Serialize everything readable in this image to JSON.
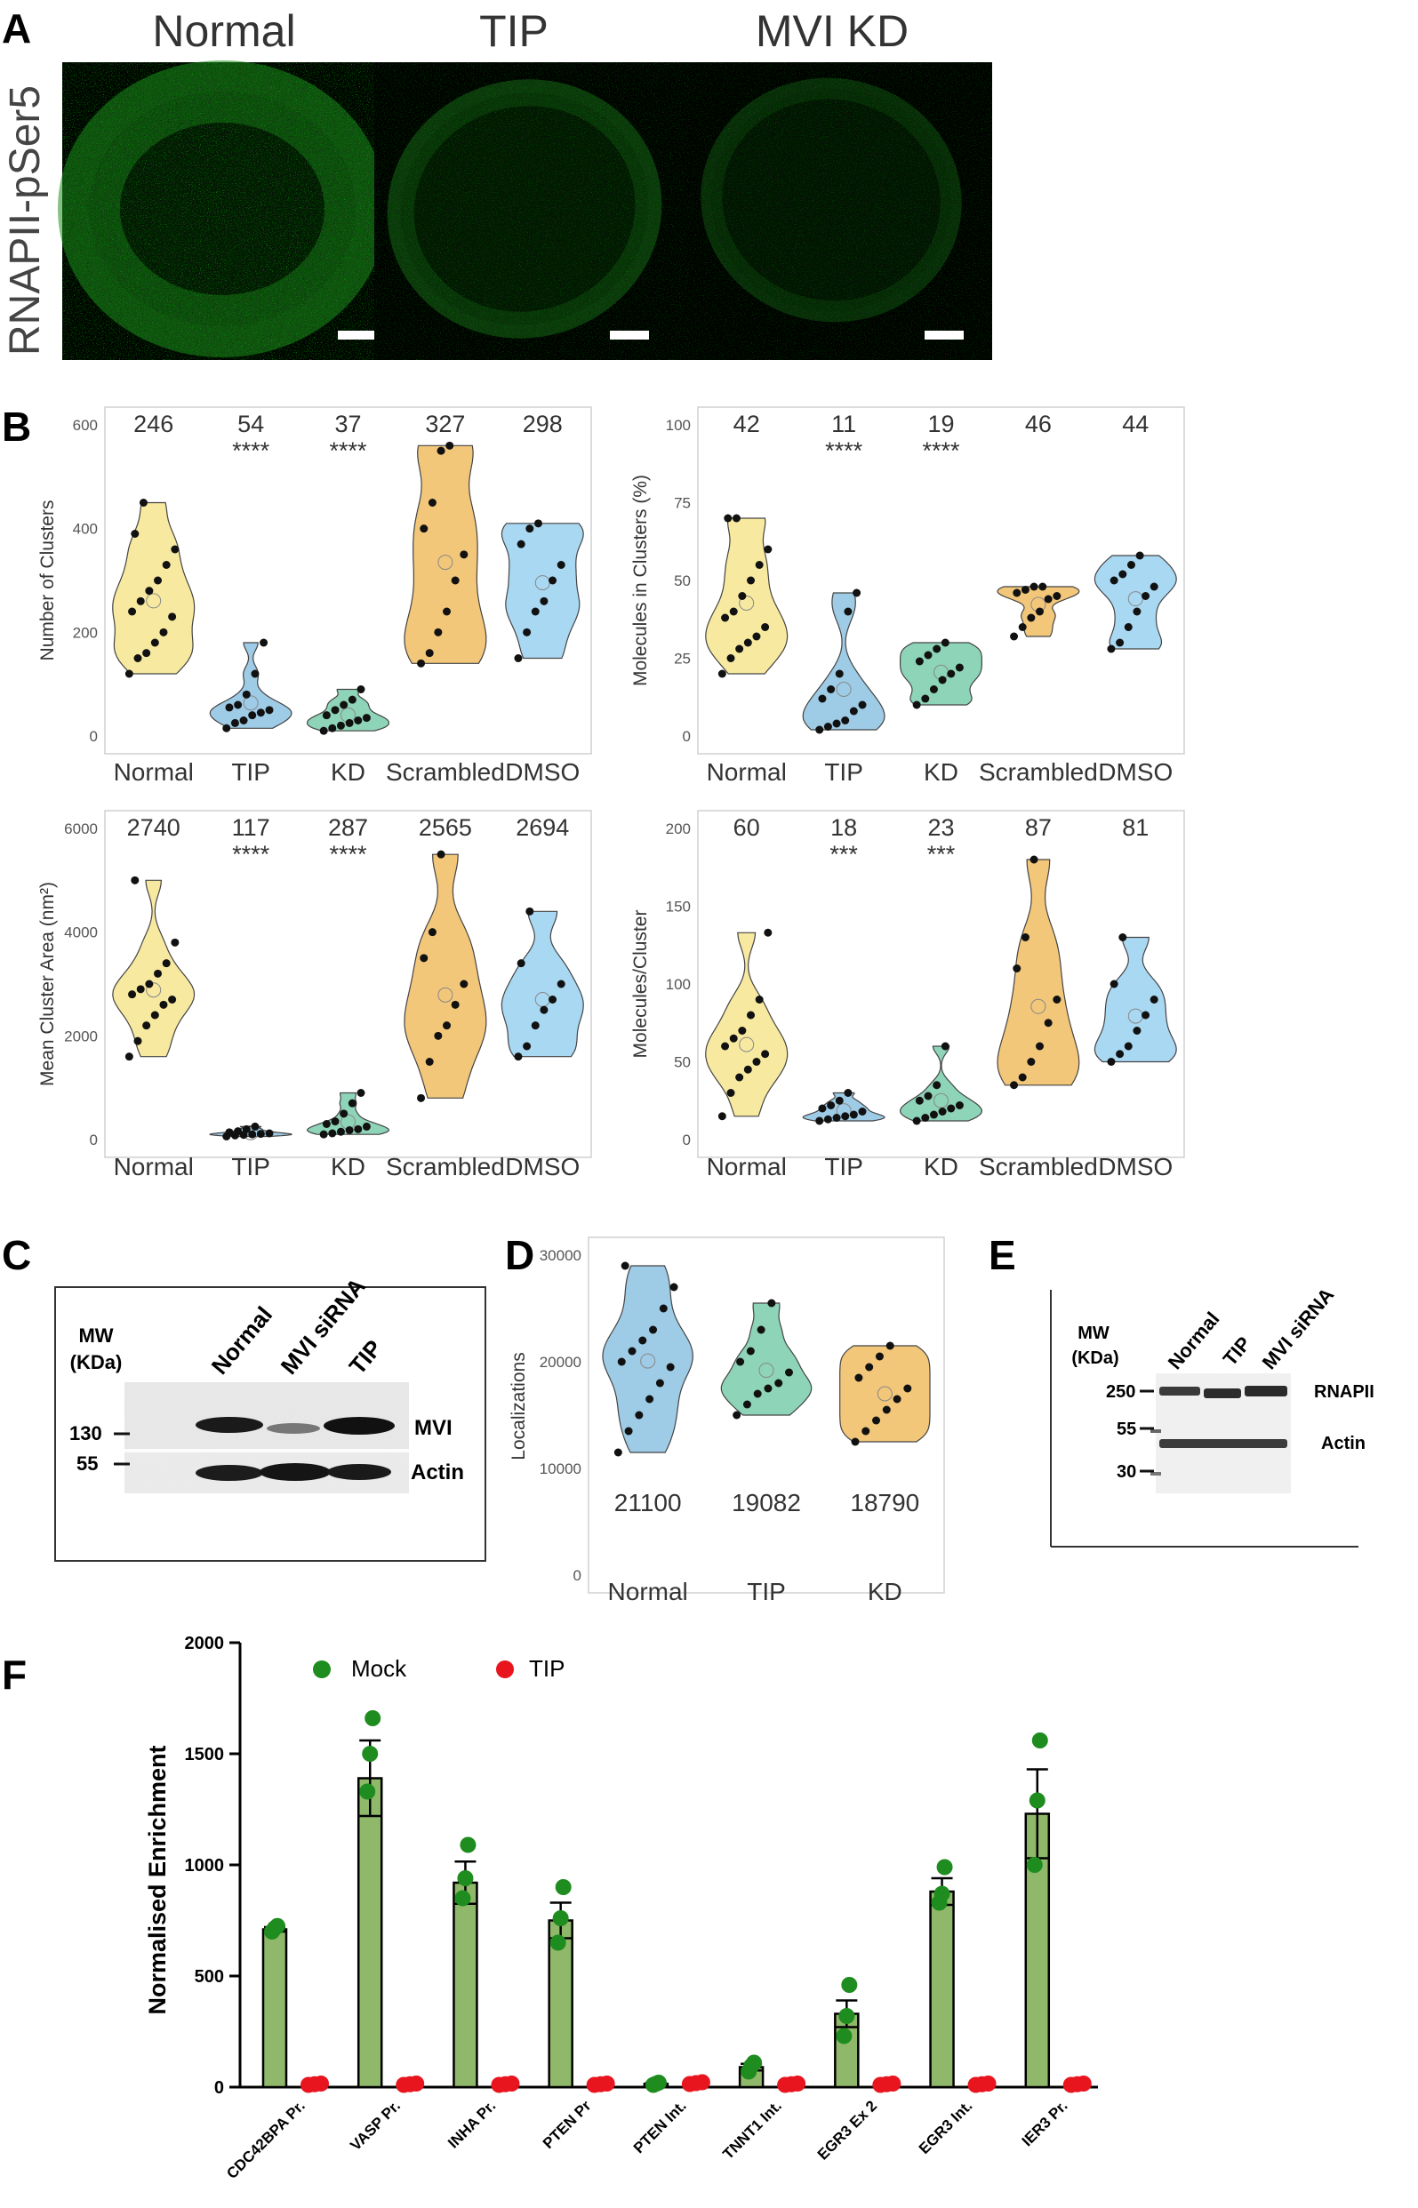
{
  "figure": {
    "panel_letters": [
      "A",
      "B",
      "C",
      "D",
      "E",
      "F"
    ],
    "panelA": {
      "stain_label": "RNAPII-pSer5",
      "conditions": [
        "Normal",
        "TIP",
        "MVI KD"
      ]
    },
    "panelB": {
      "categories": [
        "Normal",
        "TIP",
        "KD",
        "Scrambled",
        "DMSO"
      ],
      "plots": [
        {
          "ylabel": "Number of Clusters",
          "ylim": [
            0,
            600
          ],
          "yticks": [
            "0",
            "200",
            "400",
            "600"
          ],
          "means": [
            "246",
            "54",
            "37",
            "327",
            "298"
          ],
          "stars": [
            "",
            "****",
            "****",
            "",
            ""
          ],
          "colors": [
            "#f7e9a0",
            "#9ecbe6",
            "#8ed4b8",
            "#f2c77a",
            "#a9d8f2"
          ],
          "series": [
            [
              120,
              150,
              160,
              180,
              200,
              230,
              240,
              260,
              280,
              300,
              330,
              360,
              390,
              450
            ],
            [
              15,
              25,
              30,
              40,
              45,
              50,
              55,
              60,
              80,
              120,
              180
            ],
            [
              10,
              15,
              20,
              25,
              30,
              35,
              40,
              50,
              60,
              70,
              90
            ],
            [
              140,
              160,
              200,
              240,
              300,
              350,
              400,
              450,
              550,
              560
            ],
            [
              150,
              200,
              240,
              260,
              300,
              330,
              370,
              400,
              410
            ]
          ]
        },
        {
          "ylabel": "Molecules in Clusters (%)",
          "ylim": [
            0,
            100
          ],
          "yticks": [
            "0",
            "25",
            "50",
            "75",
            "100"
          ],
          "means": [
            "42",
            "11",
            "19",
            "46",
            "44"
          ],
          "stars": [
            "",
            "****",
            "****",
            "",
            ""
          ],
          "colors": [
            "#f7e9a0",
            "#9ecbe6",
            "#8ed4b8",
            "#f2c77a",
            "#a9d8f2"
          ],
          "series": [
            [
              20,
              25,
              28,
              30,
              32,
              35,
              38,
              40,
              45,
              50,
              55,
              60,
              70,
              70
            ],
            [
              2,
              3,
              4,
              5,
              8,
              10,
              12,
              15,
              20,
              40,
              46
            ],
            [
              10,
              12,
              15,
              18,
              20,
              22,
              24,
              26,
              28,
              30
            ],
            [
              32,
              35,
              38,
              40,
              44,
              45,
              46,
              47,
              48,
              48
            ],
            [
              28,
              30,
              35,
              40,
              45,
              48,
              50,
              52,
              55,
              58
            ]
          ]
        },
        {
          "ylabel": "Mean Cluster Area (nm²)",
          "ylim": [
            0,
            6000
          ],
          "yticks": [
            "0",
            "2000",
            "4000",
            "6000"
          ],
          "means": [
            "2740",
            "117",
            "287",
            "2565",
            "2694"
          ],
          "stars": [
            "",
            "****",
            "****",
            "",
            ""
          ],
          "colors": [
            "#f7e9a0",
            "#9ecbe6",
            "#8ed4b8",
            "#f2c77a",
            "#a9d8f2"
          ],
          "series": [
            [
              1600,
              1900,
              2200,
              2400,
              2600,
              2700,
              2800,
              2900,
              3000,
              3200,
              3400,
              3800,
              5000
            ],
            [
              60,
              80,
              90,
              100,
              110,
              120,
              140,
              160,
              200,
              250
            ],
            [
              100,
              120,
              150,
              180,
              200,
              250,
              300,
              350,
              500,
              700,
              900
            ],
            [
              800,
              1500,
              2000,
              2200,
              2600,
              3000,
              3500,
              4000,
              5500
            ],
            [
              1600,
              1800,
              2200,
              2500,
              2700,
              3000,
              3400,
              4400
            ]
          ]
        },
        {
          "ylabel": "Molecules/Cluster",
          "ylim": [
            0,
            200
          ],
          "yticks": [
            "0",
            "50",
            "100",
            "150",
            "200"
          ],
          "means": [
            "60",
            "18",
            "23",
            "87",
            "81"
          ],
          "stars": [
            "",
            "***",
            "***",
            "",
            ""
          ],
          "colors": [
            "#f7e9a0",
            "#9ecbe6",
            "#8ed4b8",
            "#f2c77a",
            "#a9d8f2"
          ],
          "series": [
            [
              15,
              30,
              40,
              45,
              50,
              55,
              60,
              65,
              70,
              80,
              90,
              133
            ],
            [
              12,
              13,
              14,
              15,
              16,
              18,
              20,
              22,
              25,
              30
            ],
            [
              12,
              14,
              16,
              18,
              20,
              22,
              25,
              28,
              35,
              60
            ],
            [
              35,
              40,
              50,
              60,
              75,
              90,
              110,
              130,
              180
            ],
            [
              50,
              55,
              60,
              70,
              80,
              90,
              100,
              130
            ]
          ]
        }
      ]
    },
    "panelC": {
      "mw_label": [
        "MW",
        "(KDa)"
      ],
      "lanes": [
        "Normal",
        "MVI siRNA",
        "TIP"
      ],
      "markers": [
        "130",
        "55"
      ],
      "bands": [
        "MVI",
        "Actin"
      ]
    },
    "panelD": {
      "ylabel": "Localizations",
      "ylim": [
        0,
        30000
      ],
      "yticks": [
        "0",
        "10000",
        "20000",
        "30000"
      ],
      "categories": [
        "Normal",
        "TIP",
        "KD"
      ],
      "means": [
        "21100",
        "19082",
        "18790"
      ],
      "colors": [
        "#9ecbe6",
        "#8ed4b8",
        "#f2c77a"
      ],
      "series": [
        [
          11500,
          13500,
          15000,
          16500,
          18000,
          19500,
          20000,
          21000,
          22000,
          23000,
          25000,
          27000,
          29000
        ],
        [
          15000,
          16000,
          17000,
          17500,
          18000,
          19000,
          20000,
          21000,
          23000,
          25500
        ],
        [
          12500,
          13500,
          14500,
          15500,
          16500,
          17500,
          18500,
          19500,
          20500,
          21500
        ]
      ]
    },
    "panelE": {
      "mw_label": [
        "MW",
        "(KDa)"
      ],
      "lanes": [
        "Normal",
        "TIP",
        "MVI siRNA"
      ],
      "markers": [
        "250",
        "55",
        "30"
      ],
      "bands": [
        "RNAPII",
        "Actin"
      ]
    },
    "panelF": {
      "chart_data": {
        "type": "bar",
        "ylabel": "Normalised Enrichment",
        "ylim": [
          0,
          2000
        ],
        "yticks": [
          "0",
          "500",
          "1000",
          "1500",
          "2000"
        ],
        "categories": [
          "CDC42BPA Pr.",
          "VASP Pr.",
          "INHA Pr.",
          "PTEN Pr",
          "PTEN Int.",
          "TNNT1 Int.",
          "EGR3 Ex 2",
          "EGR3 Int.",
          "IER3 Pr."
        ],
        "legend": [
          "Mock",
          "TIP"
        ],
        "legend_colors": [
          "#1e8c1e",
          "#e8141e"
        ],
        "series": [
          {
            "name": "Mock",
            "values": [
              710,
              1390,
              920,
              750,
              15,
              90,
              330,
              880,
              1230
            ],
            "errors": [
              10,
              170,
              95,
              80,
              5,
              15,
              60,
              60,
              200
            ],
            "points": [
              [
                700,
                715,
                725
              ],
              [
                1330,
                1500,
                1660
              ],
              [
                850,
                940,
                1090
              ],
              [
                650,
                760,
                900
              ],
              [
                10,
                15,
                20
              ],
              [
                70,
                95,
                110
              ],
              [
                230,
                320,
                460
              ],
              [
                830,
                870,
                990
              ],
              [
                1000,
                1290,
                1560
              ]
            ]
          },
          {
            "name": "TIP",
            "values": [
              5,
              5,
              5,
              5,
              10,
              5,
              5,
              5,
              5
            ],
            "points": [
              [
                2,
                5,
                8
              ],
              [
                2,
                5,
                8
              ],
              [
                2,
                5,
                8
              ],
              [
                2,
                5,
                8
              ],
              [
                6,
                10,
                14
              ],
              [
                2,
                5,
                8
              ],
              [
                2,
                5,
                8
              ],
              [
                2,
                5,
                8
              ],
              [
                2,
                5,
                8
              ]
            ]
          }
        ]
      }
    }
  }
}
